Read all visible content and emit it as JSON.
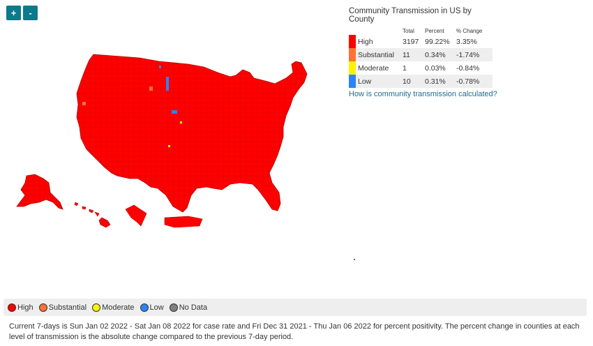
{
  "zoom": {
    "in_label": "+",
    "out_label": "-"
  },
  "panel": {
    "title": "Community Transmission in US by County",
    "headers": {
      "total": "Total",
      "percent": "Percent",
      "change": "% Change"
    },
    "rows": [
      {
        "label": "High",
        "total": "3197",
        "percent": "99.22%",
        "change": "3.35%",
        "color": "#ff0000"
      },
      {
        "label": "Substantial",
        "total": "11",
        "percent": "0.34%",
        "change": "-1.74%",
        "color": "#ff7134"
      },
      {
        "label": "Moderate",
        "total": "1",
        "percent": "0.03%",
        "change": "-0.84%",
        "color": "#fff200"
      },
      {
        "label": "Low",
        "total": "10",
        "percent": "0.31%",
        "change": "-0.78%",
        "color": "#2c83f7"
      }
    ],
    "link": "How is community transmission calculated?"
  },
  "bottom_legend": [
    {
      "label": "High",
      "color": "#ff0000"
    },
    {
      "label": "Substantial",
      "color": "#ff7134"
    },
    {
      "label": "Moderate",
      "color": "#fff200"
    },
    {
      "label": "Low",
      "color": "#2c83f7"
    },
    {
      "label": "No Data",
      "color": "#808080"
    }
  ],
  "footnote": "Current 7-days is Sun Jan 02 2022 - Sat Jan 08 2022 for case rate and Fri Dec 31 2021 - Thu Jan 06 2022 for percent positivity. The percent change in counties at each level of transmission is the absolute change compared to the previous 7-day period.",
  "map_colors": {
    "fill": "#ff0000",
    "border": "#c40000"
  }
}
